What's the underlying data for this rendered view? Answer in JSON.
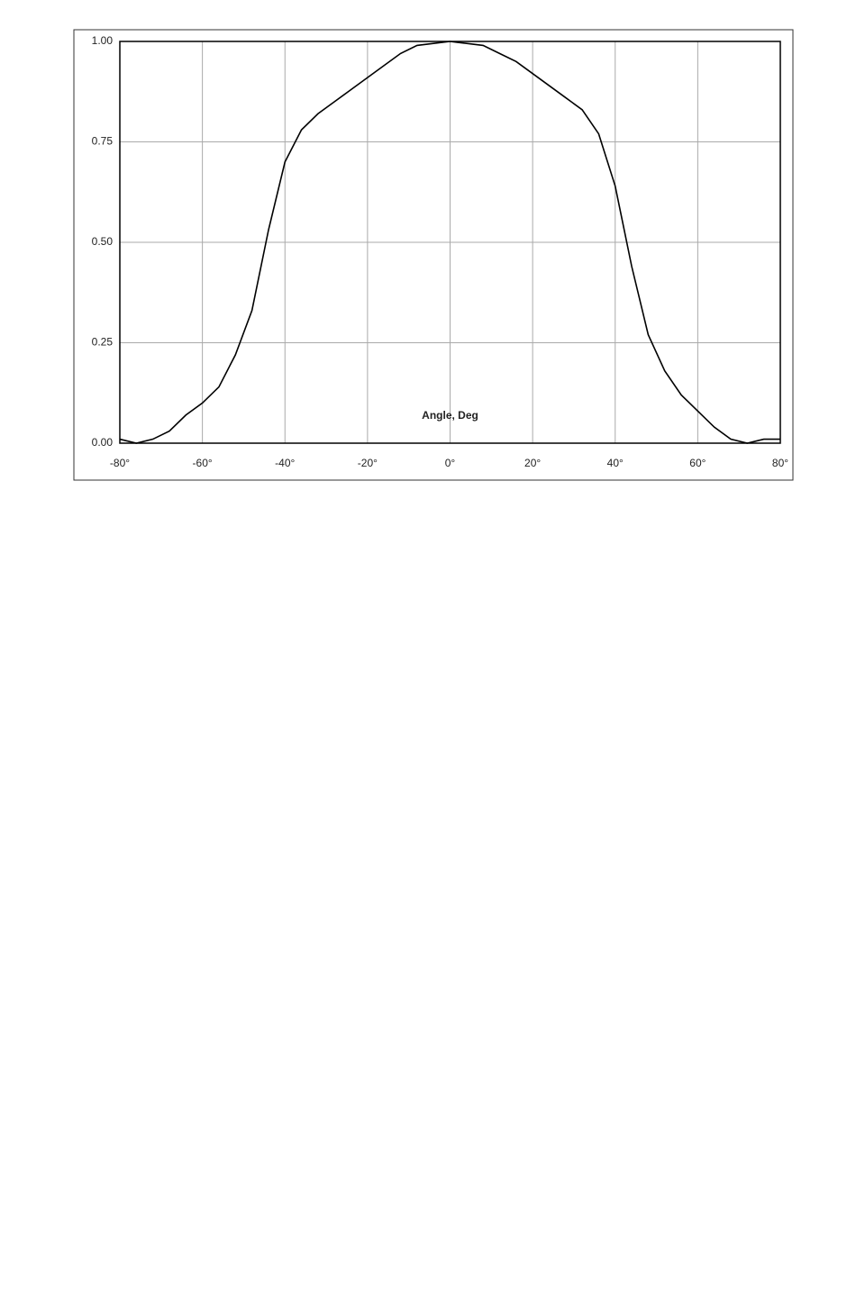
{
  "chart_data": {
    "type": "line",
    "x_label": "Angle, Deg",
    "x": [
      -80,
      -76,
      -72,
      -68,
      -64,
      -60,
      -56,
      -52,
      -48,
      -44,
      -40,
      -36,
      -32,
      -28,
      -24,
      -20,
      -16,
      -12,
      -8,
      -4,
      0,
      4,
      8,
      12,
      16,
      20,
      24,
      28,
      32,
      36,
      40,
      44,
      48,
      52,
      56,
      60,
      64,
      68,
      72,
      76,
      80
    ],
    "series": [
      {
        "color": "#000000",
        "values": [
          0.01,
          0.0,
          0.01,
          0.03,
          0.07,
          0.1,
          0.14,
          0.22,
          0.33,
          0.53,
          0.7,
          0.78,
          0.82,
          0.85,
          0.88,
          0.91,
          0.94,
          0.97,
          0.99,
          0.995,
          1.0,
          0.995,
          0.99,
          0.97,
          0.95,
          0.92,
          0.89,
          0.86,
          0.83,
          0.77,
          0.64,
          0.44,
          0.27,
          0.18,
          0.12,
          0.08,
          0.04,
          0.01,
          0.0,
          0.01,
          0.01
        ]
      }
    ],
    "xlim": [
      -80,
      80
    ],
    "xticks": [
      {
        "value": -80,
        "label": "-80°"
      },
      {
        "value": -60,
        "label": "-60°"
      },
      {
        "value": -40,
        "label": "-40°"
      },
      {
        "value": -20,
        "label": "-20°"
      },
      {
        "value": 0,
        "label": "0°"
      },
      {
        "value": 20,
        "label": "20°"
      },
      {
        "value": 40,
        "label": "40°"
      },
      {
        "value": 60,
        "label": "60°"
      },
      {
        "value": 80,
        "label": "80°"
      }
    ],
    "ylim": [
      0,
      1
    ],
    "yticks": [
      {
        "value": 0,
        "label": "0.00"
      },
      {
        "value": 0.25,
        "label": "0.25"
      },
      {
        "value": 0.5,
        "label": "0.50"
      },
      {
        "value": 0.75,
        "label": "0.75"
      },
      {
        "value": 1,
        "label": "1.00"
      }
    ],
    "grid": true
  }
}
